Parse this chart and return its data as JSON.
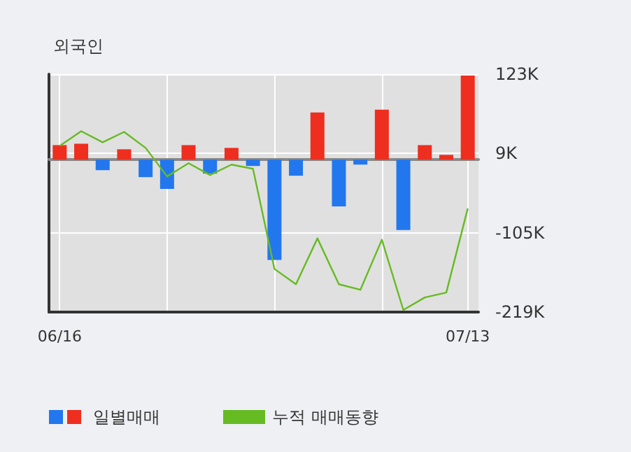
{
  "chart_data": {
    "type": "bar",
    "title": "외국인",
    "categories": [
      "06/16",
      null,
      null,
      null,
      null,
      null,
      null,
      null,
      null,
      null,
      null,
      null,
      null,
      null,
      null,
      null,
      null,
      null,
      null,
      "07/13"
    ],
    "series": [
      {
        "name": "일별매매",
        "colors": [
          "#ee2e1e",
          "#ee2e1e",
          "#2277ee",
          "#ee2e1e",
          "#2277ee",
          "#2277ee",
          "#ee2e1e",
          "#2277ee",
          "#ee2e1e",
          "#2277ee",
          "#2277ee",
          "#2277ee",
          "#ee2e1e",
          "#2277ee",
          "#2277ee",
          "#ee2e1e",
          "#2277ee",
          "#ee2e1e",
          "#ee2e1e",
          "#ee2e1e"
        ],
        "values": [
          21000,
          23000,
          -15000,
          15000,
          -25000,
          -42000,
          21000,
          -20000,
          17000,
          -9000,
          -144000,
          -23000,
          68000,
          -67000,
          -7000,
          72000,
          -101000,
          21000,
          7000,
          121000
        ]
      },
      {
        "name": "누적 매매동향",
        "type": "line",
        "color": "#66bb22",
        "values": [
          20000,
          41000,
          25000,
          40000,
          17000,
          -24000,
          -5000,
          -22000,
          -7000,
          -13000,
          -157000,
          -179000,
          -113000,
          -179000,
          -187000,
          -115000,
          -216000,
          -198000,
          -191000,
          -70000
        ]
      }
    ],
    "ylim": [
      -219000,
      123000
    ],
    "yticks": [
      {
        "value": 123000,
        "label": "123K"
      },
      {
        "value": 9000,
        "label": "9K"
      },
      {
        "value": -105000,
        "label": "-105K"
      },
      {
        "value": -219000,
        "label": "-219K"
      }
    ],
    "grid": true,
    "legend": "bottom",
    "marker": "none",
    "line_style": "solid"
  }
}
